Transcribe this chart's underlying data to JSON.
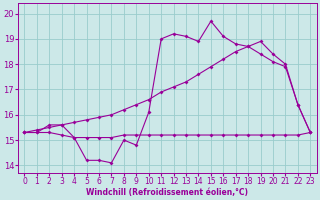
{
  "xlabel": "Windchill (Refroidissement éolien,°C)",
  "bg_color": "#cce8e8",
  "line_color": "#990099",
  "grid_color": "#99cccc",
  "xlim": [
    -0.5,
    23.5
  ],
  "ylim": [
    13.7,
    20.4
  ],
  "yticks": [
    14,
    15,
    16,
    17,
    18,
    19,
    20
  ],
  "xticks": [
    0,
    1,
    2,
    3,
    4,
    5,
    6,
    7,
    8,
    9,
    10,
    11,
    12,
    13,
    14,
    15,
    16,
    17,
    18,
    19,
    20,
    21,
    22,
    23
  ],
  "line1_x": [
    0,
    1,
    2,
    3,
    4,
    5,
    6,
    7,
    8,
    9,
    10,
    11,
    12,
    13,
    14,
    15,
    16,
    17,
    18,
    19,
    20,
    21,
    22,
    23
  ],
  "line1_y": [
    15.3,
    15.3,
    15.3,
    15.2,
    15.1,
    15.1,
    15.1,
    15.1,
    15.2,
    15.2,
    15.2,
    15.2,
    15.2,
    15.2,
    15.2,
    15.2,
    15.2,
    15.2,
    15.2,
    15.2,
    15.2,
    15.2,
    15.2,
    15.3
  ],
  "line2_x": [
    0,
    1,
    2,
    3,
    4,
    5,
    6,
    7,
    8,
    9,
    10,
    11,
    12,
    13,
    14,
    15,
    16,
    17,
    18,
    19,
    20,
    21,
    22,
    23
  ],
  "line2_y": [
    15.3,
    15.3,
    15.6,
    15.6,
    15.1,
    14.2,
    14.2,
    14.1,
    15.0,
    14.8,
    16.1,
    19.0,
    19.2,
    19.1,
    18.9,
    19.7,
    19.1,
    18.8,
    18.7,
    18.4,
    18.1,
    17.9,
    16.4,
    15.3
  ],
  "line3_x": [
    0,
    1,
    2,
    3,
    4,
    5,
    6,
    7,
    8,
    9,
    10,
    11,
    12,
    13,
    14,
    15,
    16,
    17,
    18,
    19,
    20,
    21,
    22,
    23
  ],
  "line3_y": [
    15.3,
    15.4,
    15.5,
    15.6,
    15.7,
    15.8,
    15.9,
    16.0,
    16.2,
    16.4,
    16.6,
    16.9,
    17.1,
    17.3,
    17.6,
    17.9,
    18.2,
    18.5,
    18.7,
    18.9,
    18.4,
    18.0,
    16.4,
    15.3
  ],
  "ylabel_fontsize": 5.5,
  "tick_fontsize": 5.5,
  "lw": 0.8,
  "ms": 2.0
}
